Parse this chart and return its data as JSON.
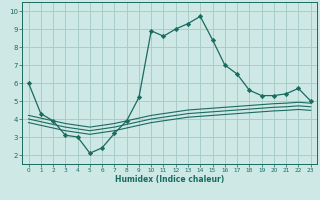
{
  "title": "",
  "xlabel": "Humidex (Indice chaleur)",
  "ylabel": "",
  "bg_color": "#cde8e5",
  "line_color": "#1a6b60",
  "grid_color": "#a8cdc9",
  "xlim": [
    -0.5,
    23.5
  ],
  "ylim": [
    1.5,
    10.5
  ],
  "xticks": [
    0,
    1,
    2,
    3,
    4,
    5,
    6,
    7,
    8,
    9,
    10,
    11,
    12,
    13,
    14,
    15,
    16,
    17,
    18,
    19,
    20,
    21,
    22,
    23
  ],
  "yticks": [
    2,
    3,
    4,
    5,
    6,
    7,
    8,
    9,
    10
  ],
  "lines": [
    {
      "x": [
        0,
        1,
        2,
        3,
        4,
        5,
        6,
        7,
        8,
        9,
        10,
        11,
        12,
        13,
        14,
        15,
        16,
        17,
        18,
        19,
        20,
        21,
        22,
        23
      ],
      "y": [
        6.0,
        4.3,
        3.9,
        3.1,
        3.0,
        2.1,
        2.4,
        3.2,
        3.9,
        5.2,
        8.9,
        8.6,
        9.0,
        9.3,
        9.7,
        8.4,
        7.0,
        6.5,
        5.6,
        5.3,
        5.3,
        5.4,
        5.7,
        5.0
      ],
      "marker": true
    },
    {
      "x": [
        0,
        1,
        2,
        3,
        4,
        5,
        6,
        7,
        8,
        9,
        10,
        11,
        12,
        13,
        14,
        15,
        16,
        17,
        18,
        19,
        20,
        21,
        22,
        23
      ],
      "y": [
        4.2,
        4.05,
        3.9,
        3.75,
        3.65,
        3.55,
        3.65,
        3.75,
        3.9,
        4.05,
        4.2,
        4.3,
        4.4,
        4.5,
        4.55,
        4.6,
        4.65,
        4.7,
        4.75,
        4.8,
        4.85,
        4.88,
        4.93,
        4.88
      ],
      "marker": false
    },
    {
      "x": [
        0,
        1,
        2,
        3,
        4,
        5,
        6,
        7,
        8,
        9,
        10,
        11,
        12,
        13,
        14,
        15,
        16,
        17,
        18,
        19,
        20,
        21,
        22,
        23
      ],
      "y": [
        4.0,
        3.85,
        3.7,
        3.55,
        3.45,
        3.35,
        3.45,
        3.55,
        3.7,
        3.85,
        4.0,
        4.1,
        4.2,
        4.3,
        4.35,
        4.4,
        4.45,
        4.5,
        4.55,
        4.6,
        4.65,
        4.68,
        4.73,
        4.68
      ],
      "marker": false
    },
    {
      "x": [
        0,
        1,
        2,
        3,
        4,
        5,
        6,
        7,
        8,
        9,
        10,
        11,
        12,
        13,
        14,
        15,
        16,
        17,
        18,
        19,
        20,
        21,
        22,
        23
      ],
      "y": [
        3.8,
        3.65,
        3.5,
        3.35,
        3.25,
        3.15,
        3.25,
        3.35,
        3.5,
        3.65,
        3.8,
        3.9,
        4.0,
        4.1,
        4.15,
        4.2,
        4.25,
        4.3,
        4.35,
        4.4,
        4.45,
        4.48,
        4.53,
        4.48
      ],
      "marker": false
    }
  ]
}
